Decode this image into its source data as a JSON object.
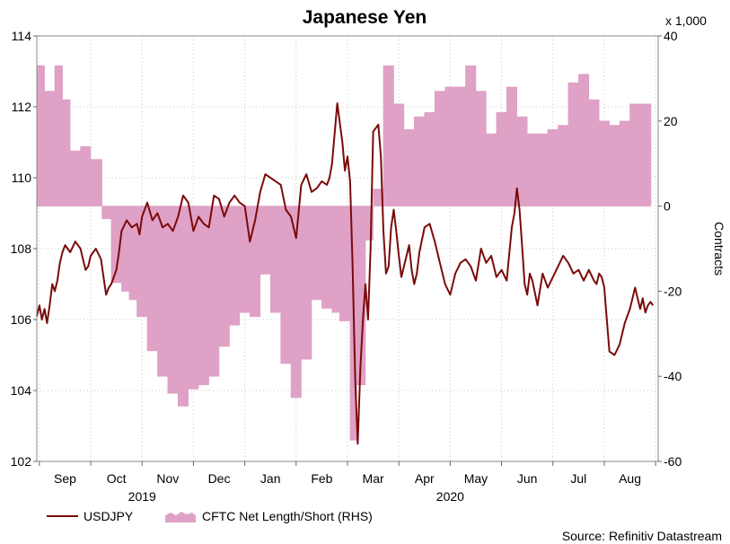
{
  "chart_data": {
    "type": "line+area",
    "title": "Japanese Yen",
    "source": "Source: Refinitiv Datastream",
    "left_axis": {
      "label": "",
      "ylim": [
        102,
        114
      ],
      "ticks": [
        102,
        104,
        106,
        108,
        110,
        112,
        114
      ]
    },
    "right_axis": {
      "label": "Contracts",
      "multiplier_label": "x 1,000",
      "ylim": [
        -60,
        40
      ],
      "ticks": [
        -60,
        -40,
        -20,
        0,
        20,
        40
      ]
    },
    "x_axis": {
      "months": [
        "Sep",
        "Oct",
        "Nov",
        "Dec",
        "Jan",
        "Feb",
        "Mar",
        "Apr",
        "May",
        "Jun",
        "Jul",
        "Aug"
      ],
      "years": [
        {
          "label": "2019",
          "at_month_index": 1.5
        },
        {
          "label": "2020",
          "at_month_index": 7.5
        }
      ],
      "xlim": [
        -0.55,
        11.55
      ]
    },
    "legend": [
      {
        "name": "USDJPY",
        "type": "line",
        "color": "#7a0a0a"
      },
      {
        "name": "CFTC Net Length/Short (RHS)",
        "type": "area",
        "color": "#dfa1c6"
      }
    ],
    "series": [
      {
        "name": "CFTC Net Length/Short (RHS)",
        "type": "step-area",
        "axis": "right",
        "color": "#dfa1c6",
        "x": [
          -0.55,
          -0.4,
          -0.2,
          -0.05,
          0.1,
          0.3,
          0.5,
          0.72,
          0.9,
          1.1,
          1.25,
          1.4,
          1.6,
          1.8,
          2.0,
          2.2,
          2.4,
          2.6,
          2.8,
          3.0,
          3.2,
          3.4,
          3.6,
          3.8,
          4.0,
          4.2,
          4.4,
          4.6,
          4.8,
          5.0,
          5.2,
          5.35,
          5.55,
          5.68,
          5.85,
          6.0,
          6.2,
          6.4,
          6.6,
          6.8,
          7.0,
          7.2,
          7.4,
          7.6,
          7.8,
          8.0,
          8.2,
          8.4,
          8.6,
          8.8,
          9.0,
          9.2,
          9.4,
          9.6,
          9.8,
          10.0,
          10.2,
          10.4,
          10.6,
          10.8,
          11.0,
          11.2,
          11.4
        ],
        "values": [
          33,
          27,
          33,
          25,
          13,
          14,
          11,
          -3,
          -18,
          -20,
          -22,
          -26,
          -34,
          -40,
          -44,
          -47,
          -43,
          -42,
          -40,
          -33,
          -28,
          -25,
          -26,
          -16,
          -25,
          -37,
          -45,
          -36,
          -22,
          -24,
          -25,
          -27,
          -55,
          -42,
          -8,
          4,
          33,
          24,
          18,
          21,
          22,
          27,
          28,
          28,
          33,
          27,
          17,
          22,
          28,
          21,
          17,
          17,
          18,
          19,
          29,
          31,
          25,
          20,
          19,
          20,
          24,
          24,
          24
        ]
      },
      {
        "name": "USDJPY",
        "type": "line",
        "axis": "left",
        "color": "#7a0a0a",
        "x": [
          -0.55,
          -0.5,
          -0.45,
          -0.4,
          -0.35,
          -0.3,
          -0.25,
          -0.2,
          -0.15,
          -0.1,
          -0.05,
          0.0,
          0.1,
          0.2,
          0.3,
          0.4,
          0.45,
          0.5,
          0.6,
          0.7,
          0.75,
          0.8,
          0.85,
          0.9,
          1.0,
          1.05,
          1.1,
          1.2,
          1.3,
          1.4,
          1.45,
          1.5,
          1.6,
          1.7,
          1.8,
          1.9,
          2.0,
          2.1,
          2.2,
          2.3,
          2.4,
          2.5,
          2.6,
          2.7,
          2.8,
          2.9,
          3.0,
          3.1,
          3.2,
          3.3,
          3.4,
          3.5,
          3.6,
          3.7,
          3.8,
          3.9,
          4.0,
          4.1,
          4.2,
          4.3,
          4.4,
          4.5,
          4.6,
          4.7,
          4.8,
          4.9,
          5.0,
          5.1,
          5.15,
          5.2,
          5.3,
          5.4,
          5.45,
          5.5,
          5.55,
          5.6,
          5.65,
          5.7,
          5.75,
          5.8,
          5.85,
          5.9,
          5.95,
          6.0,
          6.05,
          6.1,
          6.15,
          6.2,
          6.25,
          6.3,
          6.35,
          6.4,
          6.45,
          6.5,
          6.55,
          6.6,
          6.7,
          6.75,
          6.8,
          6.85,
          6.9,
          7.0,
          7.1,
          7.2,
          7.3,
          7.4,
          7.5,
          7.6,
          7.7,
          7.8,
          7.9,
          8.0,
          8.1,
          8.2,
          8.3,
          8.4,
          8.5,
          8.6,
          8.7,
          8.75,
          8.8,
          8.85,
          8.9,
          8.95,
          9.0,
          9.05,
          9.1,
          9.2,
          9.3,
          9.4,
          9.5,
          9.6,
          9.7,
          9.8,
          9.9,
          10.0,
          10.1,
          10.2,
          10.3,
          10.35,
          10.4,
          10.45,
          10.5,
          10.55,
          10.6,
          10.7,
          10.8,
          10.9,
          11.0,
          11.1,
          11.2,
          11.25,
          11.3,
          11.35,
          11.4,
          11.45
        ],
        "values": [
          106.1,
          106.4,
          106.0,
          106.3,
          105.9,
          106.4,
          107.0,
          106.8,
          107.1,
          107.6,
          107.9,
          108.1,
          107.9,
          108.2,
          108.0,
          107.4,
          107.5,
          107.8,
          108.0,
          107.7,
          107.2,
          106.7,
          106.9,
          107.0,
          107.4,
          107.9,
          108.5,
          108.8,
          108.6,
          108.7,
          108.4,
          108.9,
          109.3,
          108.8,
          109.0,
          108.6,
          108.7,
          108.5,
          108.9,
          109.5,
          109.3,
          108.5,
          108.9,
          108.7,
          108.6,
          109.5,
          109.4,
          108.9,
          109.3,
          109.5,
          109.3,
          109.2,
          108.2,
          108.8,
          109.6,
          110.1,
          110.0,
          109.9,
          109.8,
          109.1,
          108.9,
          108.3,
          109.8,
          110.1,
          109.6,
          109.7,
          109.9,
          109.8,
          110.0,
          110.4,
          112.1,
          111.0,
          110.2,
          110.6,
          109.9,
          107.5,
          104.3,
          102.5,
          104.6,
          106.0,
          107.0,
          106.0,
          108.0,
          111.3,
          111.4,
          111.5,
          110.6,
          108.5,
          107.3,
          107.5,
          108.6,
          109.1,
          108.5,
          107.8,
          107.2,
          107.5,
          108.1,
          107.4,
          107.0,
          107.3,
          107.9,
          108.6,
          108.7,
          108.2,
          107.6,
          107.0,
          106.7,
          107.3,
          107.6,
          107.7,
          107.5,
          107.1,
          108.0,
          107.6,
          107.8,
          107.2,
          107.4,
          107.1,
          108.6,
          109.0,
          109.7,
          109.1,
          108.1,
          107.0,
          106.7,
          107.3,
          107.1,
          106.4,
          107.3,
          106.9,
          107.2,
          107.5,
          107.8,
          107.6,
          107.3,
          107.4,
          107.1,
          107.4,
          107.1,
          107.0,
          107.3,
          107.2,
          106.9,
          106.0,
          105.1,
          105.0,
          105.3,
          105.9,
          106.3,
          106.9,
          106.3,
          106.6,
          106.2,
          106.4,
          106.5,
          106.4
        ]
      }
    ]
  }
}
